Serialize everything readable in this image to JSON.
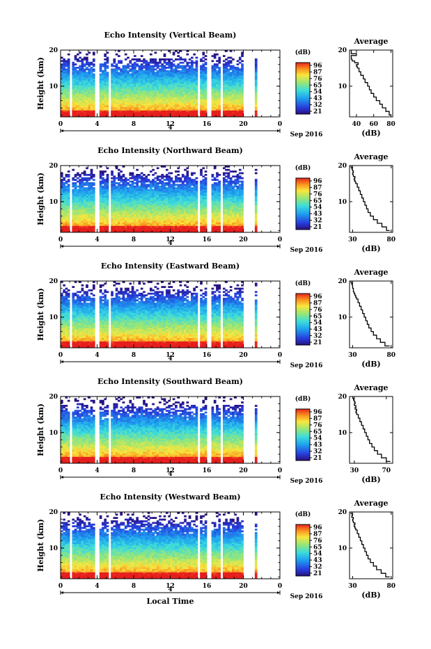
{
  "figure": {
    "xlabel": "Local Time",
    "date_label": "Sep 2016",
    "day_label": "4",
    "colorbar_unit": "(dB)",
    "colorbar_ticks": [
      "96",
      "87",
      "76",
      "65",
      "54",
      "43",
      "32",
      "21"
    ]
  },
  "chart_data": [
    {
      "type": "heatmap",
      "title": "Echo Intensity (Vertical Beam)",
      "ylabel": "Height (km)",
      "xlabel": "",
      "xticks": [
        "0",
        "4",
        "8",
        "12",
        "16",
        "20",
        "0"
      ],
      "yticks": [
        "10",
        "20"
      ],
      "xlim": [
        0,
        24
      ],
      "ylim": [
        1.5,
        20
      ],
      "gaps": [
        [
          1.0,
          1.3
        ],
        [
          3.8,
          4.2
        ],
        [
          5.2,
          5.5
        ],
        [
          14.9,
          15.3
        ],
        [
          16.1,
          16.4
        ],
        [
          17.4,
          17.7
        ],
        [
          20.0,
          21.3
        ],
        [
          21.5,
          24
        ]
      ],
      "colorbar": {
        "label": "(dB)",
        "min": 21,
        "max": 96
      }
    },
    {
      "type": "line",
      "title": "Average",
      "xlabel": "(dB)",
      "ylabel": "",
      "xticks": [
        "40",
        "60",
        "80"
      ],
      "yticks": [
        "10",
        "20"
      ],
      "xlim": [
        32,
        82
      ],
      "ylim": [
        1.5,
        20
      ],
      "series": [
        {
          "x": [
            80,
            78,
            74,
            70,
            67,
            63,
            60,
            57,
            55,
            53,
            50,
            48,
            45,
            43,
            41,
            40,
            42,
            38,
            35,
            34,
            34,
            40,
            34,
            34
          ],
          "y": [
            2,
            3,
            4,
            5,
            6,
            7,
            8,
            9,
            10,
            11,
            12,
            13,
            14,
            15,
            15.5,
            16,
            16.5,
            17,
            17.5,
            18,
            18.5,
            19,
            19.5,
            20
          ]
        }
      ]
    },
    {
      "type": "heatmap",
      "title": "Echo Intensity (Northward Beam)",
      "ylabel": "Height (km)",
      "xlabel": "",
      "xticks": [
        "0",
        "4",
        "8",
        "12",
        "16",
        "20",
        "0"
      ],
      "yticks": [
        "10",
        "20"
      ],
      "xlim": [
        0,
        24
      ],
      "ylim": [
        1.5,
        20
      ],
      "gaps": [
        [
          1.0,
          1.3
        ],
        [
          3.8,
          4.2
        ],
        [
          5.2,
          5.5
        ],
        [
          14.9,
          15.3
        ],
        [
          16.1,
          16.4
        ],
        [
          17.4,
          17.7
        ],
        [
          20.0,
          21.3
        ],
        [
          21.5,
          24
        ]
      ],
      "colorbar": {
        "label": "(dB)",
        "min": 21,
        "max": 96
      }
    },
    {
      "type": "line",
      "title": "Average",
      "xlabel": "(dB)",
      "ylabel": "",
      "xticks": [
        "30",
        "80"
      ],
      "yticks": [
        "10",
        "20"
      ],
      "xlim": [
        26,
        82
      ],
      "ylim": [
        1.5,
        20
      ],
      "series": [
        {
          "x": [
            78,
            74,
            68,
            62,
            57,
            53,
            50,
            48,
            46,
            44,
            42,
            40,
            38,
            36,
            34,
            33,
            32,
            33,
            31,
            30,
            31,
            30,
            29,
            28
          ],
          "y": [
            2,
            3,
            4,
            5,
            6,
            7,
            8,
            9,
            10,
            11,
            12,
            13,
            14,
            15,
            15.5,
            16,
            16.5,
            17,
            17.5,
            18,
            18.5,
            19,
            19.5,
            20
          ]
        }
      ]
    },
    {
      "type": "heatmap",
      "title": "Echo Intensity (Eastward Beam)",
      "ylabel": "Height (km)",
      "xlabel": "",
      "xticks": [
        "0",
        "4",
        "8",
        "12",
        "16",
        "20",
        "0"
      ],
      "yticks": [
        "10",
        "20"
      ],
      "xlim": [
        0,
        24
      ],
      "ylim": [
        1.5,
        20
      ],
      "gaps": [
        [
          1.0,
          1.3
        ],
        [
          3.8,
          4.2
        ],
        [
          5.2,
          5.5
        ],
        [
          14.9,
          15.3
        ],
        [
          16.1,
          16.4
        ],
        [
          17.4,
          17.7
        ],
        [
          20.0,
          21.3
        ],
        [
          21.5,
          24
        ]
      ],
      "colorbar": {
        "label": "(dB)",
        "min": 21,
        "max": 96
      }
    },
    {
      "type": "line",
      "title": "Average",
      "xlabel": "(dB)",
      "ylabel": "",
      "xticks": [
        "30",
        "80"
      ],
      "yticks": [
        "10",
        "20"
      ],
      "xlim": [
        26,
        82
      ],
      "ylim": [
        1.5,
        20
      ],
      "series": [
        {
          "x": [
            78,
            72,
            66,
            61,
            57,
            54,
            51,
            49,
            47,
            45,
            43,
            41,
            39,
            37,
            35,
            34,
            33,
            32,
            31,
            31,
            30,
            30,
            29,
            28
          ],
          "y": [
            2,
            3,
            4,
            5,
            6,
            7,
            8,
            9,
            10,
            11,
            12,
            13,
            14,
            15,
            15.5,
            16,
            16.5,
            17,
            17.5,
            18,
            18.5,
            19,
            19.5,
            20
          ]
        }
      ]
    },
    {
      "type": "heatmap",
      "title": "Echo Intensity (Southward Beam)",
      "ylabel": "Height (km)",
      "xlabel": "",
      "xticks": [
        "0",
        "4",
        "8",
        "12",
        "16",
        "20",
        "0"
      ],
      "yticks": [
        "10",
        "20"
      ],
      "xlim": [
        0,
        24
      ],
      "ylim": [
        1.5,
        20
      ],
      "gaps": [
        [
          1.0,
          1.3
        ],
        [
          3.8,
          4.2
        ],
        [
          5.2,
          5.5
        ],
        [
          14.9,
          15.3
        ],
        [
          16.1,
          16.4
        ],
        [
          17.4,
          17.7
        ],
        [
          20.0,
          21.3
        ],
        [
          21.5,
          24
        ]
      ],
      "colorbar": {
        "label": "(dB)",
        "min": 21,
        "max": 96
      }
    },
    {
      "type": "line",
      "title": "Average",
      "xlabel": "(dB)",
      "ylabel": "",
      "xticks": [
        "30",
        "70"
      ],
      "yticks": [
        "10",
        "20"
      ],
      "xlim": [
        24,
        78
      ],
      "ylim": [
        1.5,
        20
      ],
      "series": [
        {
          "x": [
            75,
            70,
            64,
            59,
            55,
            52,
            49,
            47,
            45,
            43,
            41,
            39,
            37,
            35,
            33,
            32,
            33,
            31,
            32,
            30,
            31,
            30,
            29,
            28
          ],
          "y": [
            2,
            3,
            4,
            5,
            6,
            7,
            8,
            9,
            10,
            11,
            12,
            13,
            14,
            15,
            15.5,
            16,
            16.5,
            17,
            17.5,
            18,
            18.5,
            19,
            19.5,
            20
          ]
        }
      ]
    },
    {
      "type": "heatmap",
      "title": "Echo Intensity (Westward Beam)",
      "ylabel": "Height (km)",
      "xlabel": "Local Time",
      "xticks": [
        "0",
        "4",
        "8",
        "12",
        "16",
        "20",
        "0"
      ],
      "yticks": [
        "10",
        "20"
      ],
      "xlim": [
        0,
        24
      ],
      "ylim": [
        1.5,
        20
      ],
      "gaps": [
        [
          1.0,
          1.3
        ],
        [
          3.8,
          4.2
        ],
        [
          5.2,
          5.5
        ],
        [
          14.9,
          15.3
        ],
        [
          16.1,
          16.4
        ],
        [
          17.4,
          17.7
        ],
        [
          20.0,
          21.3
        ],
        [
          21.5,
          24
        ]
      ],
      "colorbar": {
        "label": "(dB)",
        "min": 21,
        "max": 96
      }
    },
    {
      "type": "line",
      "title": "Average",
      "xlabel": "(dB)",
      "ylabel": "",
      "xticks": [
        "30",
        "80"
      ],
      "yticks": [
        "10",
        "20"
      ],
      "xlim": [
        26,
        82
      ],
      "ylim": [
        1.5,
        20
      ],
      "series": [
        {
          "x": [
            78,
            73,
            67,
            61,
            57,
            53,
            50,
            48,
            46,
            44,
            42,
            40,
            38,
            36,
            34,
            33,
            32,
            33,
            31,
            30,
            31,
            29,
            30,
            28
          ],
          "y": [
            2,
            3,
            4,
            5,
            6,
            7,
            8,
            9,
            10,
            11,
            12,
            13,
            14,
            15,
            15.5,
            16,
            16.5,
            17,
            17.5,
            18,
            18.5,
            19,
            19.5,
            20
          ]
        }
      ]
    }
  ]
}
